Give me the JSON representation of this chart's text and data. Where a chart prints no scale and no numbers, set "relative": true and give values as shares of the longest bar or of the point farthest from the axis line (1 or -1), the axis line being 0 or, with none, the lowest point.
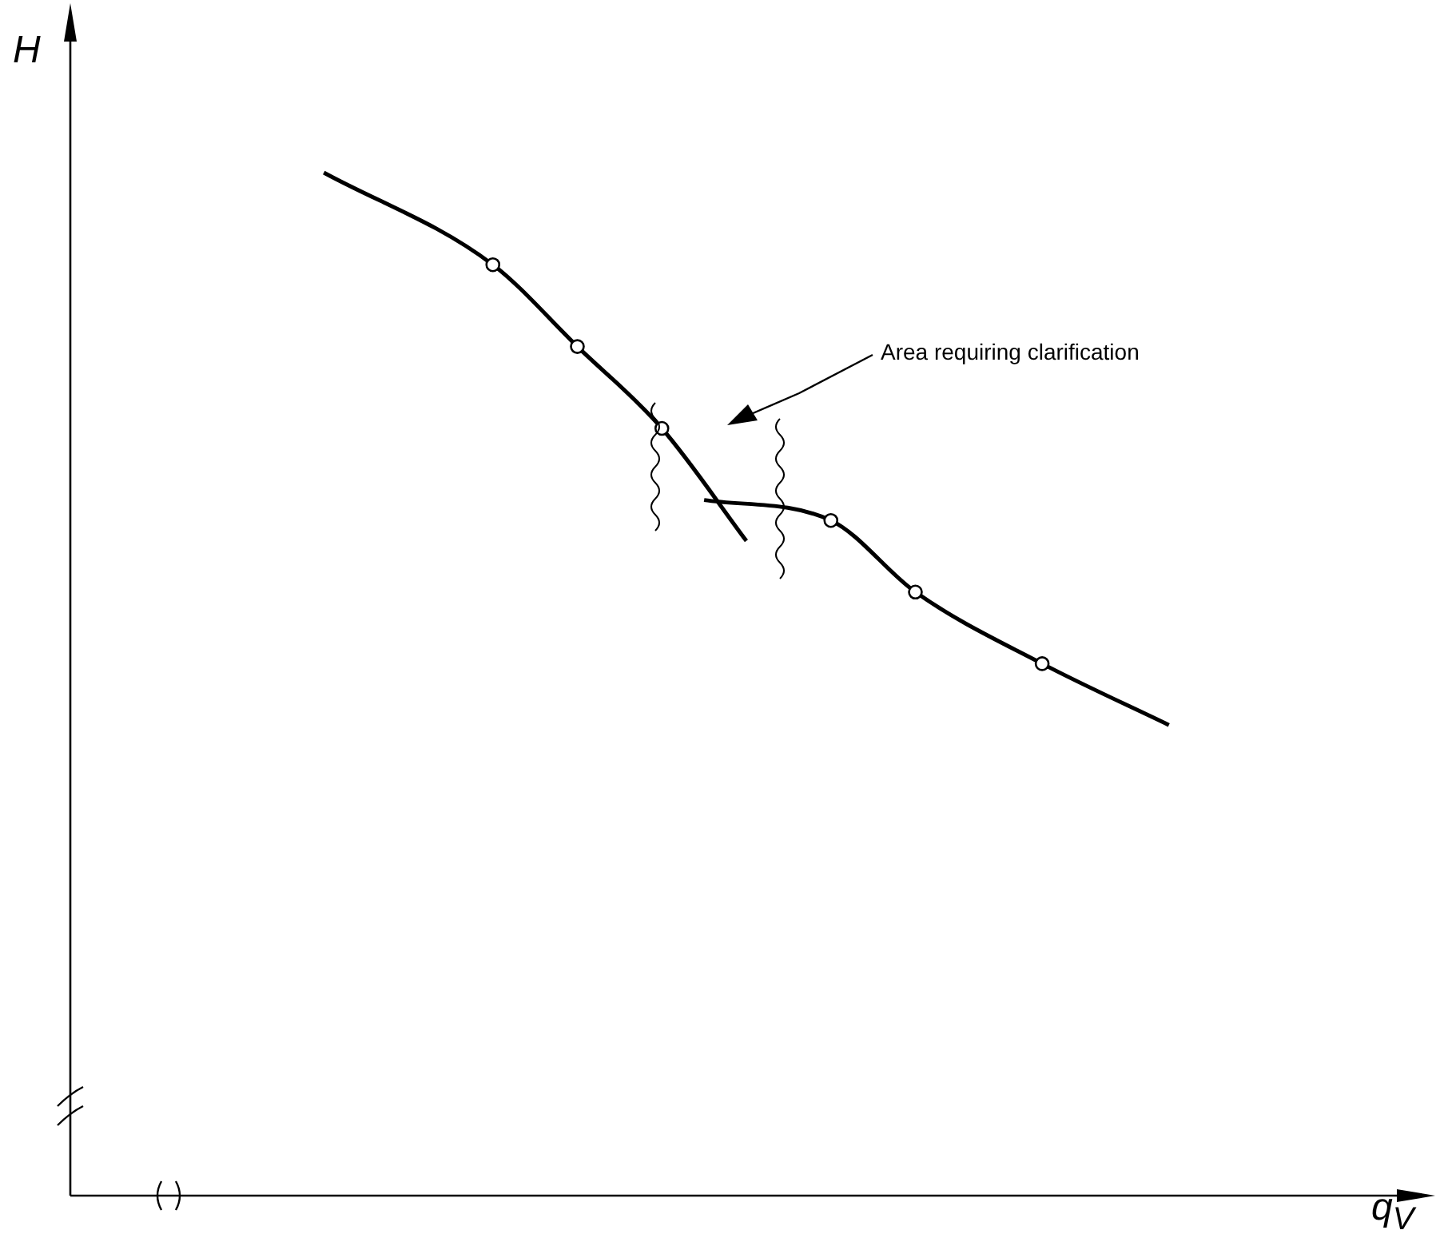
{
  "chart_data": {
    "type": "line",
    "relative": true,
    "xlabel": "q$_{V}$",
    "ylabel": "H",
    "annotations": [
      "Area requiring clarification"
    ],
    "marker": "circle",
    "line_style": "solid",
    "legend": false,
    "categories": [
      null,
      null,
      null,
      null,
      null,
      null,
      null,
      null,
      null,
      null,
      null,
      null,
      null,
      null,
      null,
      null,
      null,
      null,
      null,
      null,
      null,
      null,
      null,
      null,
      null,
      null,
      null,
      null,
      null,
      null,
      null,
      null,
      null
    ],
    "series": [
      {
        "color": "#000000",
        "values": [
          null,
          null,
          null,
          null,
          null,
          null,
          1,
          null,
          null,
          null,
          0.91,
          null,
          0.83,
          null,
          0.75,
          null,
          0.64,
          null,
          null,
          null,
          null,
          null,
          null,
          null,
          null,
          null,
          null,
          null,
          null,
          null,
          null,
          null,
          null
        ]
      },
      {
        "color": "#000000",
        "values": [
          null,
          null,
          null,
          null,
          null,
          null,
          null,
          null,
          null,
          null,
          null,
          null,
          null,
          null,
          null,
          0.68,
          null,
          null,
          0.66,
          null,
          0.59,
          null,
          null,
          0.52,
          null,
          null,
          0.46,
          null,
          null,
          null,
          null,
          null,
          null
        ]
      }
    ]
  }
}
